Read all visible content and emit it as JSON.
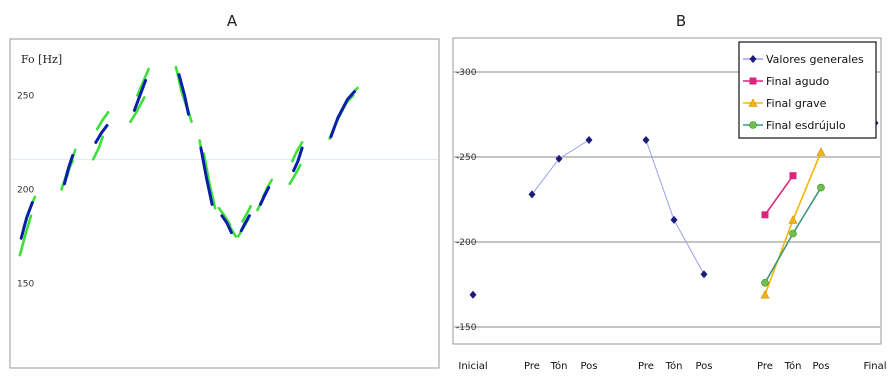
{
  "chart_data": [
    {
      "panel": "A",
      "type": "line",
      "ylabel": "Fo [Hz]",
      "yticks": [
        150,
        200,
        250
      ],
      "ylim": [
        105,
        280
      ],
      "xlim": [
        0,
        100
      ],
      "reference_line_y": 216,
      "grid": false,
      "series": [
        {
          "color": "#0a1fa8",
          "segments": [
            [
              [
                2.6,
                174
              ],
              [
                3.9,
                185
              ],
              [
                5.2,
                193
              ]
            ],
            [
              [
                12.7,
                203
              ],
              [
                13.6,
                211
              ],
              [
                14.6,
                218
              ]
            ],
            [
              [
                20.0,
                225
              ],
              [
                21.3,
                230
              ],
              [
                22.6,
                234
              ]
            ],
            [
              [
                29.0,
                242
              ],
              [
                30.3,
                250
              ],
              [
                31.6,
                258
              ]
            ],
            [
              [
                39.4,
                261
              ],
              [
                40.7,
                250
              ],
              [
                41.6,
                240
              ]
            ],
            [
              [
                44.5,
                222
              ],
              [
                45.8,
                206
              ],
              [
                47.1,
                192
              ]
            ],
            [
              [
                49.4,
                186
              ],
              [
                50.6,
                182
              ],
              [
                51.6,
                177
              ]
            ],
            [
              [
                53.9,
                178
              ],
              [
                54.8,
                182
              ],
              [
                55.8,
                186
              ]
            ],
            [
              [
                58.4,
                192
              ],
              [
                59.4,
                197
              ],
              [
                60.3,
                201
              ]
            ],
            [
              [
                66.1,
                210
              ],
              [
                67.1,
                215
              ],
              [
                68.1,
                222
              ]
            ],
            [
              [
                74.8,
                228
              ],
              [
                76.4,
                238
              ],
              [
                78.7,
                248
              ],
              [
                80.3,
                252
              ]
            ]
          ]
        },
        {
          "color": "#3de03a",
          "segments": [
            [
              [
                2.3,
                165
              ],
              [
                3.6,
                176
              ],
              [
                4.9,
                186
              ]
            ],
            [
              [
                3.2,
                180
              ],
              [
                4.5,
                189
              ],
              [
                5.8,
                196
              ]
            ],
            [
              [
                12.0,
                200
              ],
              [
                13.3,
                209
              ],
              [
                14.6,
                215
              ]
            ],
            [
              [
                13.3,
                207
              ],
              [
                14.2,
                214
              ],
              [
                15.2,
                221
              ]
            ],
            [
              [
                19.4,
                216
              ],
              [
                20.7,
                222
              ],
              [
                21.6,
                228
              ]
            ],
            [
              [
                20.3,
                232
              ],
              [
                21.6,
                237
              ],
              [
                22.9,
                241
              ]
            ],
            [
              [
                28.1,
                236
              ],
              [
                29.7,
                242
              ],
              [
                31.3,
                249
              ]
            ],
            [
              [
                29.7,
                250
              ],
              [
                31.0,
                257
              ],
              [
                32.3,
                264
              ]
            ],
            [
              [
                38.7,
                265
              ],
              [
                40.0,
                252
              ],
              [
                41.3,
                243
              ]
            ],
            [
              [
                39.7,
                258
              ],
              [
                41.0,
                246
              ],
              [
                42.3,
                236
              ]
            ],
            [
              [
                44.2,
                226
              ],
              [
                45.5,
                210
              ],
              [
                46.8,
                196
              ]
            ],
            [
              [
                45.2,
                219
              ],
              [
                46.5,
                203
              ],
              [
                47.8,
                190
              ]
            ],
            [
              [
                48.7,
                190
              ],
              [
                50.0,
                186
              ],
              [
                51.3,
                181
              ]
            ],
            [
              [
                50.0,
                185
              ],
              [
                51.3,
                180
              ],
              [
                52.6,
                175
              ]
            ],
            [
              [
                53.2,
                175
              ],
              [
                54.5,
                180
              ],
              [
                55.5,
                184
              ]
            ],
            [
              [
                54.2,
                183
              ],
              [
                55.2,
                187
              ],
              [
                56.1,
                191
              ]
            ],
            [
              [
                57.7,
                189
              ],
              [
                58.7,
                194
              ],
              [
                59.7,
                198
              ]
            ],
            [
              [
                59.0,
                196
              ],
              [
                60.0,
                201
              ],
              [
                61.0,
                205
              ]
            ],
            [
              [
                65.2,
                203
              ],
              [
                66.5,
                208
              ],
              [
                67.7,
                213
              ]
            ],
            [
              [
                65.8,
                215
              ],
              [
                66.8,
                220
              ],
              [
                68.1,
                225
              ]
            ],
            [
              [
                74.5,
                227
              ],
              [
                76.1,
                236
              ],
              [
                78.4,
                246
              ],
              [
                80.0,
                250
              ]
            ],
            [
              [
                75.5,
                233
              ],
              [
                77.4,
                242
              ],
              [
                79.4,
                250
              ],
              [
                81.0,
                254
              ]
            ]
          ]
        }
      ]
    },
    {
      "panel": "B",
      "type": "line",
      "yticks": [
        150,
        200,
        250,
        300
      ],
      "ylim": [
        140,
        320
      ],
      "grid": true,
      "legend_position": "top-right",
      "x_categories": [
        "Inicial",
        "Pre",
        "Tón",
        "Pos",
        "Pre",
        "Tón",
        "Pos",
        "Pre",
        "Tón",
        "Pos",
        "Final"
      ],
      "series": [
        {
          "name": "Valores generales",
          "color": "#1c1c7a",
          "line_color": "#9aa0e6",
          "marker": "diamond",
          "segments": [
            [
              [
                0,
                169
              ]
            ],
            [
              [
                1,
                228
              ],
              [
                2,
                249
              ],
              [
                3,
                260
              ]
            ],
            [
              [
                4,
                260
              ],
              [
                5,
                213
              ],
              [
                6,
                181
              ]
            ],
            [
              [
                10,
                270
              ]
            ]
          ]
        },
        {
          "name": "Final agudo",
          "color": "#e0227e",
          "line_color": "#e0227e",
          "marker": "square",
          "segments": [
            [
              [
                7,
                216
              ],
              [
                8,
                239
              ]
            ]
          ]
        },
        {
          "name": "Final grave",
          "color": "#f5b50f",
          "line_color": "#f5b50f",
          "marker": "triangle",
          "segments": [
            [
              [
                7,
                169
              ],
              [
                8,
                213
              ],
              [
                9,
                253
              ]
            ]
          ]
        },
        {
          "name": "Final esdrújulo",
          "color": "#6cc24a",
          "line_color": "#3a9a7a",
          "marker": "circle",
          "segments": [
            [
              [
                7,
                176
              ],
              [
                8,
                205
              ],
              [
                9,
                232
              ]
            ]
          ]
        }
      ]
    }
  ],
  "panel_titles": [
    "A",
    "B"
  ]
}
